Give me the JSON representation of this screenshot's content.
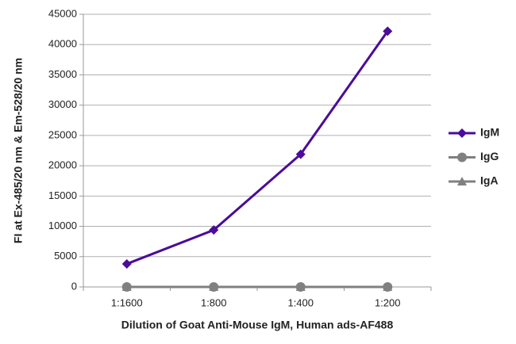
{
  "chart_data": {
    "type": "line",
    "x_label": "Dilution of Goat Anti-Mouse IgM, Human ads-AF488",
    "y_label": "FI at Ex-485/20 nm & Em-528/20 nm",
    "categories": [
      "1:1600",
      "1:800",
      "1:400",
      "1:200"
    ],
    "series": [
      {
        "name": "IgM",
        "color": "#4b0c99",
        "marker": "diamond",
        "values": [
          3800,
          9400,
          21900,
          42200
        ]
      },
      {
        "name": "IgG",
        "color": "#808080",
        "marker": "circle",
        "values": [
          0,
          0,
          0,
          0
        ]
      },
      {
        "name": "IgA",
        "color": "#808080",
        "marker": "triangle",
        "values": [
          0,
          0,
          0,
          0
        ]
      }
    ],
    "ylim": [
      0,
      45000
    ],
    "yticks": [
      0,
      5000,
      10000,
      15000,
      20000,
      25000,
      30000,
      35000,
      40000,
      45000
    ],
    "grid": true,
    "legend": "right"
  }
}
